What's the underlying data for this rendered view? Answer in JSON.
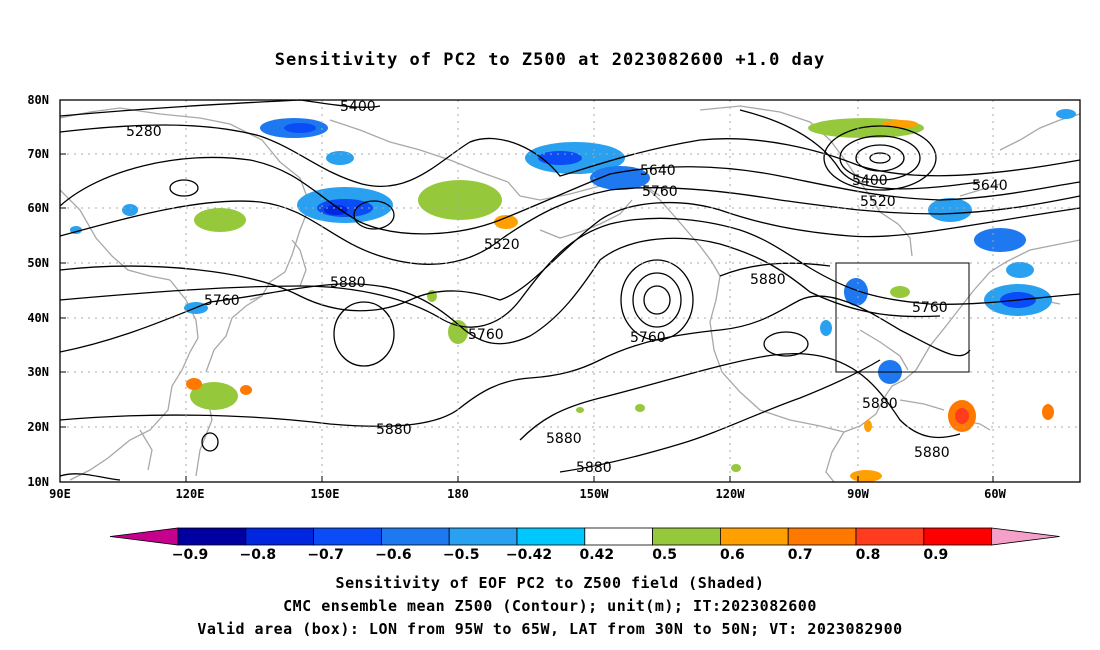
{
  "title": "Sensitivity of PC2 to Z500 at 2023082600 +1.0 day",
  "axes": {
    "y_ticks": [
      "80N",
      "70N",
      "60N",
      "50N",
      "40N",
      "30N",
      "20N",
      "10N"
    ],
    "x_ticks": [
      "90E",
      "120E",
      "150E",
      "180",
      "150W",
      "120W",
      "90W",
      "60W"
    ]
  },
  "contour_labels": [
    "5400",
    "5640",
    "5280",
    "5400",
    "5520",
    "5640",
    "5760",
    "5520",
    "5760",
    "5880",
    "5880",
    "5760",
    "5760",
    "5760",
    "5880",
    "5880",
    "5880",
    "5880",
    "5880"
  ],
  "colorbar": {
    "labels": [
      "-0.9",
      "-0.8",
      "-0.7",
      "-0.6",
      "-0.5",
      "-0.42",
      "0.42",
      "0.5",
      "0.6",
      "0.7",
      "0.8",
      "0.9"
    ],
    "colors": [
      "#c4008c",
      "#0000a0",
      "#0026e0",
      "#0a4cf5",
      "#1e78f0",
      "#2aa0f0",
      "#00c8ff",
      "#ffffff",
      "#96c83c",
      "#ffa000",
      "#ff7800",
      "#ff3c1e",
      "#ff0000",
      "#f5a0c8"
    ]
  },
  "footer": {
    "line1": "Sensitivity of EOF PC2 to Z500 field (Shaded)",
    "line2": "CMC ensemble mean Z500 (Contour); unit(m); IT:2023082600",
    "line3": "Valid area (box): LON from 95W to 65W, LAT from 30N to 50N; VT: 2023082900"
  }
}
